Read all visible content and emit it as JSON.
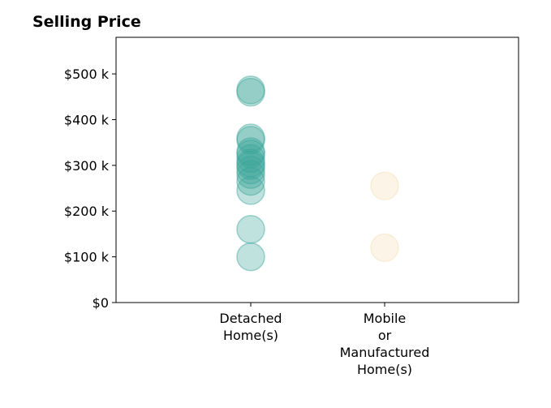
{
  "chart_data": {
    "type": "scatter",
    "title": "Selling Price",
    "xlabel": "",
    "ylabel": "",
    "categories": [
      [
        "Detached",
        "Home(s)"
      ],
      [
        "Mobile",
        "or",
        "Manufactured",
        "Home(s)"
      ]
    ],
    "y_ticks": [
      "$0",
      "$100 k",
      "$200 k",
      "$300 k",
      "$400 k",
      "$500 k"
    ],
    "ylim": [
      0,
      580000
    ],
    "grid": false,
    "series": [
      {
        "color": "#3aa598",
        "values": [
          100000,
          160000,
          245000,
          265000,
          280000,
          290000,
          300000,
          305000,
          315000,
          325000,
          330000,
          355000,
          360000,
          460000,
          465000
        ]
      },
      {
        "color": "#f5deb3",
        "values": [
          120000,
          255000
        ]
      }
    ]
  }
}
